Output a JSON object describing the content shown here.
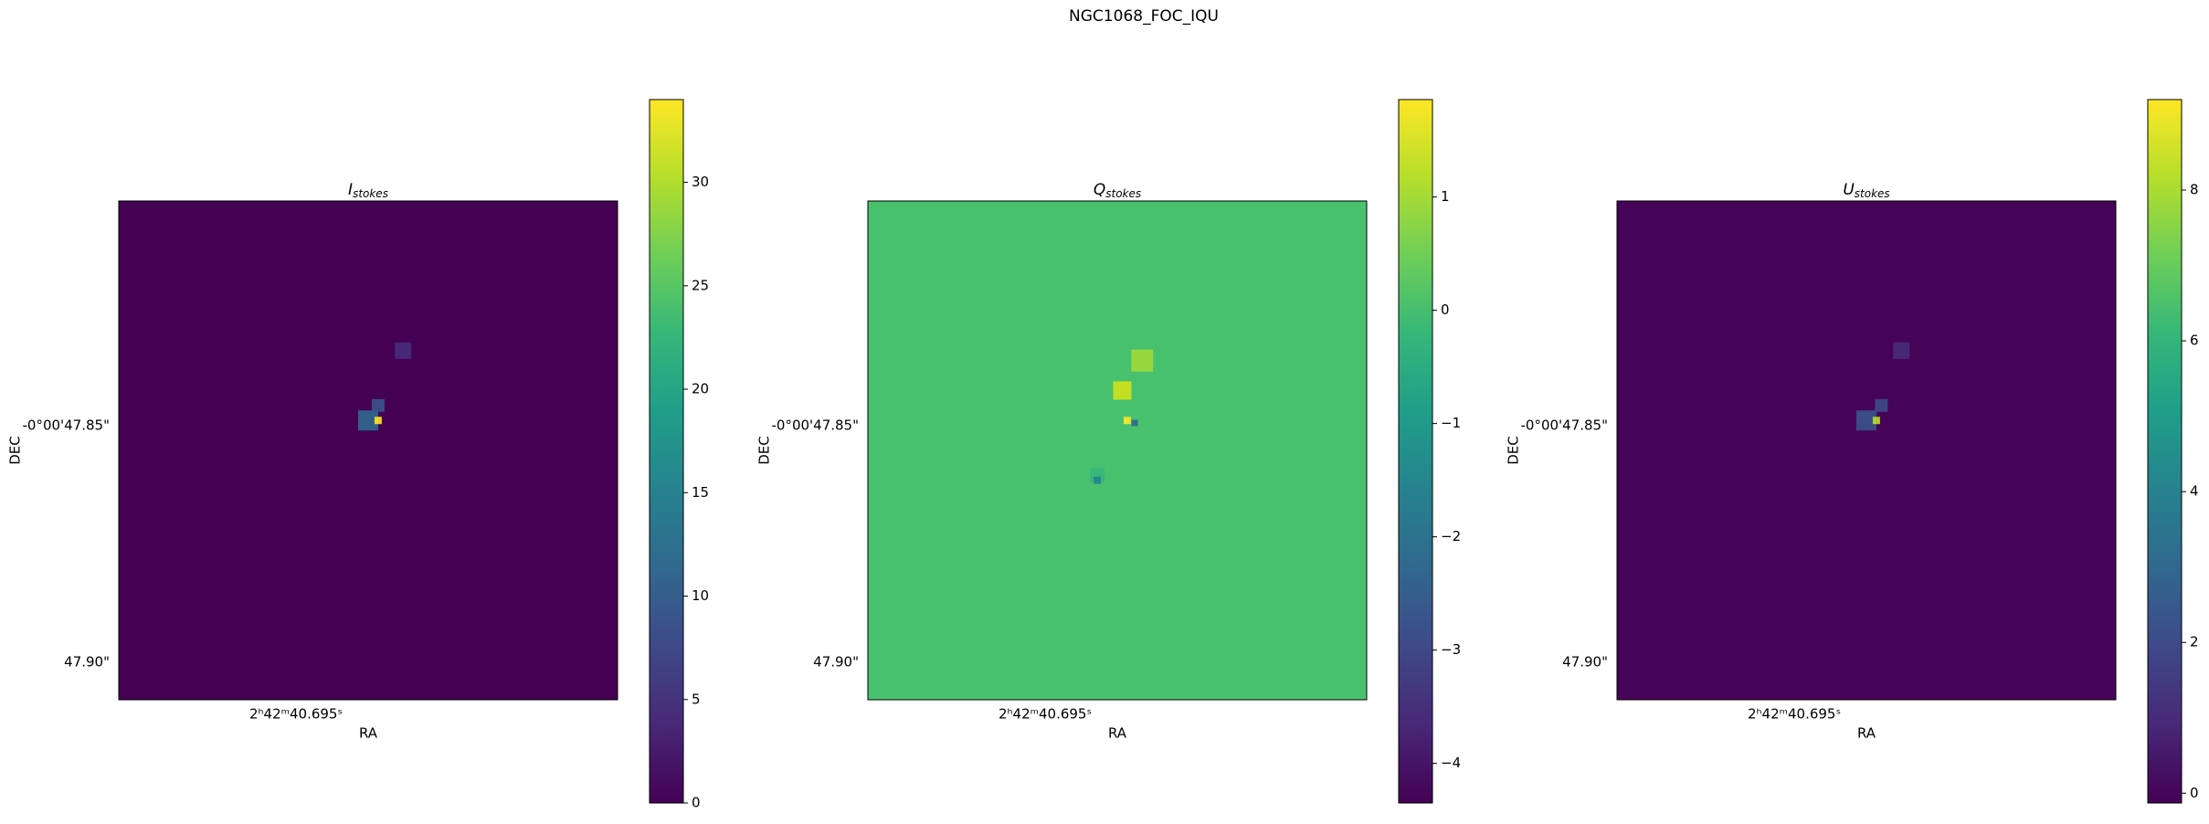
{
  "figure_title": "NGC1068_FOC_IQU",
  "chart_data": [
    {
      "type": "image",
      "title_symbol": "I",
      "title_subscript": "stokes",
      "xlabel": "RA",
      "ylabel": "DEC",
      "xtick_labels": [
        "2ʰ42ᵐ40.695ˢ"
      ],
      "ytick_labels": [
        "-0°00'47.85\"",
        "47.90\""
      ],
      "background_color": "#440154",
      "colormap": "viridis",
      "clim": [
        0,
        34
      ],
      "cticks": [
        0,
        5,
        10,
        15,
        20,
        25,
        30
      ]
    },
    {
      "type": "image",
      "title_symbol": "Q",
      "title_subscript": "stokes",
      "xlabel": "RA",
      "ylabel": "DEC",
      "xtick_labels": [
        "2ʰ42ᵐ40.695ˢ"
      ],
      "ytick_labels": [
        "-0°00'47.85\"",
        "47.90\""
      ],
      "background_color": "#48c16e",
      "colormap": "viridis",
      "clim": [
        -4.35,
        1.86
      ],
      "cticks": [
        {
          "value": -4,
          "label": "−4"
        },
        {
          "value": -3,
          "label": "−3"
        },
        {
          "value": -2,
          "label": "−2"
        },
        {
          "value": -1,
          "label": "−1"
        },
        0,
        1
      ]
    },
    {
      "type": "image",
      "title_symbol": "U",
      "title_subscript": "stokes",
      "xlabel": "RA",
      "ylabel": "DEC",
      "xtick_labels": [
        "2ʰ42ᵐ40.695ˢ"
      ],
      "ytick_labels": [
        "-0°00'47.85\"",
        "47.90\""
      ],
      "background_color": "#450457",
      "colormap": "viridis",
      "clim": [
        -0.13,
        9.2
      ],
      "cticks": [
        0,
        2,
        4,
        6,
        8
      ]
    }
  ]
}
